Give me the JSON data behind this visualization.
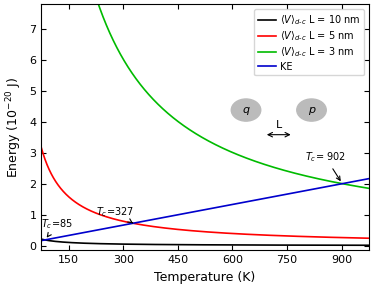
{
  "xlabel": "Temperature (K)",
  "ylabel": "Energy ($10^{-20}$ J)",
  "xlim": [
    75,
    975
  ],
  "ylim": [
    -0.15,
    7.8
  ],
  "xticks": [
    150,
    300,
    450,
    600,
    750,
    900
  ],
  "yticks": [
    0,
    1,
    2,
    3,
    4,
    5,
    6,
    7
  ],
  "colors": {
    "V10": "#000000",
    "V5": "#ff0000",
    "V3": "#00bb00",
    "KE": "#0000cc"
  },
  "Tc_V10": 85,
  "Tc_V5": 327,
  "Tc_V3": 902,
  "KE_at_900": 2.0,
  "background_color": "#ffffff",
  "legend_fontsize": 7,
  "tick_labelsize": 8,
  "axis_labelsize": 9
}
